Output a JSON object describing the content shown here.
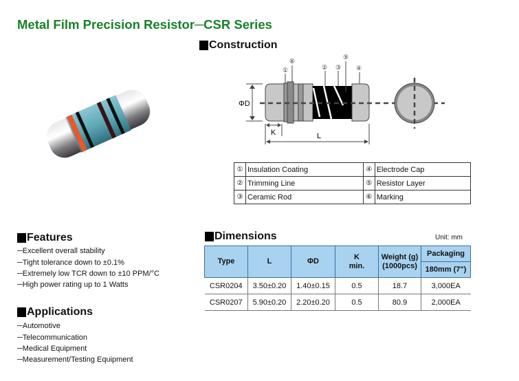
{
  "title": "Metal Film Precision Resistor─CSR Series",
  "construction": {
    "heading": "Construction",
    "dimension_labels": {
      "diameter": "ΦD",
      "k": "K",
      "length": "L"
    },
    "callouts": [
      "①",
      "②",
      "③",
      "④",
      "⑤",
      "⑥"
    ],
    "legend": [
      [
        {
          "num": "①",
          "label": "Insulation Coating"
        },
        {
          "num": "④",
          "label": "Electrode Cap"
        }
      ],
      [
        {
          "num": "②",
          "label": "Trimming Line"
        },
        {
          "num": "⑤",
          "label": "Resistor Layer"
        }
      ],
      [
        {
          "num": "③",
          "label": "Ceramic Rod"
        },
        {
          "num": "⑥",
          "label": "Marking"
        }
      ]
    ]
  },
  "features": {
    "heading": "Features",
    "items": [
      "─Excellent overall stability",
      "─Tight tolerance down to ±0.1%",
      "─Extremely low TCR down to ±10 PPM/°C",
      "─High power rating up to 1 Watts"
    ]
  },
  "applications": {
    "heading": "Applications",
    "items": [
      "─Automotive",
      "─Telecommunication",
      "─Medical Equipment",
      "─Measurement/Testing Equipment"
    ]
  },
  "dimensions": {
    "heading": "Dimensions",
    "unit": "Unit: mm",
    "headers": {
      "type": "Type",
      "l": "L",
      "d": "ΦD",
      "k1": "K",
      "k2": "min.",
      "w1": "Weight (g)",
      "w2": "(1000pcs)",
      "pkg": "Packaging",
      "pkg_sub": "180mm (7\")"
    },
    "rows": [
      [
        "CSR0204",
        "3.50±0.20",
        "1.40±0.15",
        "0.5",
        "18.7",
        "3,000EA"
      ],
      [
        "CSR0207",
        "5.90±0.20",
        "2.20±0.20",
        "0.5",
        "80.9",
        "2,000EA"
      ]
    ]
  },
  "colors": {
    "title": "#17812a",
    "table_header": "#a8d2f0",
    "band_orange": "#e8582a",
    "body_blue": "#5fa9b8"
  }
}
